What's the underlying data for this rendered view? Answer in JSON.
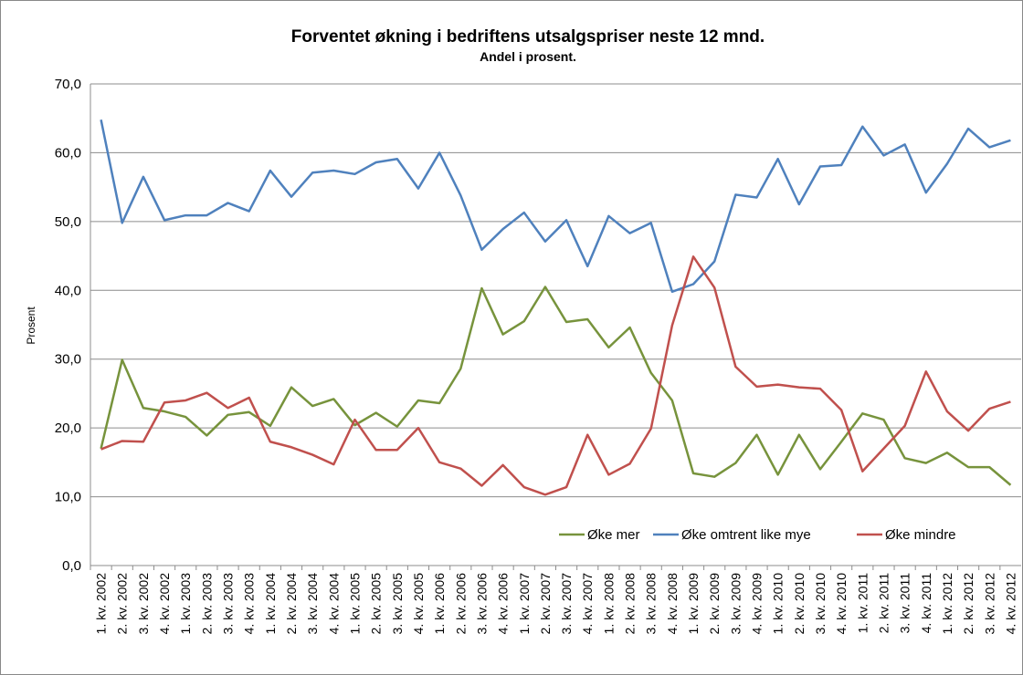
{
  "chart_data": {
    "type": "line",
    "title": "Forventet økning i bedriftens utsalgspriser neste 12 mnd.",
    "subtitle": "Andel i prosent.",
    "ylabel": "Prosent",
    "categories": [
      "1. kv. 2002",
      "2. kv. 2002",
      "3. kv. 2002",
      "4. kv. 2002",
      "1. kv. 2003",
      "2. kv. 2003",
      "3. kv. 2003",
      "4. kv. 2003",
      "1. kv. 2004",
      "2. kv. 2004",
      "3. kv. 2004",
      "4. kv. 2004",
      "1. kv. 2005",
      "2. kv. 2005",
      "3. kv. 2005",
      "4. kv. 2005",
      "1. kv. 2006",
      "2. kv. 2006",
      "3. kv. 2006",
      "4. kv. 2006",
      "1. kv. 2007",
      "2. kv. 2007",
      "3. kv. 2007",
      "4. kv. 2007",
      "1. kv. 2008",
      "2. kv. 2008",
      "3. kv. 2008",
      "4. kv. 2008",
      "1. kv. 2009",
      "2. kv. 2009",
      "3. kv. 2009",
      "4. kv. 2009",
      "1. kv. 2010",
      "2. kv. 2010",
      "3. kv. 2010",
      "4. kv. 2010",
      "1. kv. 2011",
      "2. kv. 2011",
      "3. kv. 2011",
      "4. kv. 2011",
      "1. kv. 2012",
      "2. kv. 2012",
      "3. kv. 2012",
      "4. kv. 2012"
    ],
    "series": [
      {
        "name": "Øke mer",
        "color": "#77933c",
        "values": [
          17.0,
          29.9,
          22.9,
          22.4,
          21.6,
          18.9,
          21.9,
          22.3,
          20.3,
          25.9,
          23.2,
          24.2,
          20.4,
          22.2,
          20.2,
          24.0,
          23.6,
          28.6,
          40.3,
          33.6,
          35.5,
          40.5,
          35.4,
          35.8,
          31.7,
          34.6,
          28.0,
          24.0,
          13.4,
          12.9,
          14.9,
          19.0,
          13.2,
          19.0,
          14.0,
          18.0,
          22.1,
          21.2,
          15.6,
          14.9,
          16.4,
          14.3,
          14.3,
          11.7
        ]
      },
      {
        "name": "Øke omtrent like mye",
        "color": "#4f81bd",
        "values": [
          64.8,
          49.8,
          56.5,
          50.2,
          50.9,
          50.9,
          52.7,
          51.5,
          57.4,
          53.6,
          57.1,
          57.4,
          56.9,
          58.6,
          59.1,
          54.8,
          60.0,
          53.8,
          45.9,
          48.9,
          51.3,
          47.1,
          50.2,
          43.5,
          50.8,
          48.3,
          49.8,
          39.8,
          40.9,
          44.2,
          53.9,
          53.5,
          59.1,
          52.5,
          58.0,
          58.2,
          63.8,
          59.6,
          61.2,
          54.2,
          58.4,
          63.5,
          60.8,
          61.8
        ]
      },
      {
        "name": "Øke mindre",
        "color": "#c0504d",
        "values": [
          16.9,
          18.1,
          18.0,
          23.7,
          24.0,
          25.1,
          22.9,
          24.4,
          18.0,
          17.2,
          16.1,
          14.7,
          21.2,
          16.8,
          16.8,
          20.0,
          15.0,
          14.1,
          11.6,
          14.6,
          11.4,
          10.3,
          11.4,
          19.0,
          13.2,
          14.8,
          19.9,
          34.9,
          44.9,
          40.4,
          28.9,
          26.0,
          26.3,
          25.9,
          25.7,
          22.6,
          13.7,
          17.0,
          20.3,
          28.2,
          22.4,
          19.6,
          22.8,
          23.8
        ]
      }
    ],
    "ylim": [
      0,
      70
    ],
    "yticks": [
      {
        "value": 0,
        "label": "0,0"
      },
      {
        "value": 10,
        "label": "10,0"
      },
      {
        "value": 20,
        "label": "20,0"
      },
      {
        "value": 30,
        "label": "30,0"
      },
      {
        "value": 40,
        "label": "40,0"
      },
      {
        "value": 50,
        "label": "50,0"
      },
      {
        "value": 60,
        "label": "60,0"
      },
      {
        "value": 70,
        "label": "70,0"
      }
    ],
    "grid": true,
    "legend": "lower right"
  }
}
